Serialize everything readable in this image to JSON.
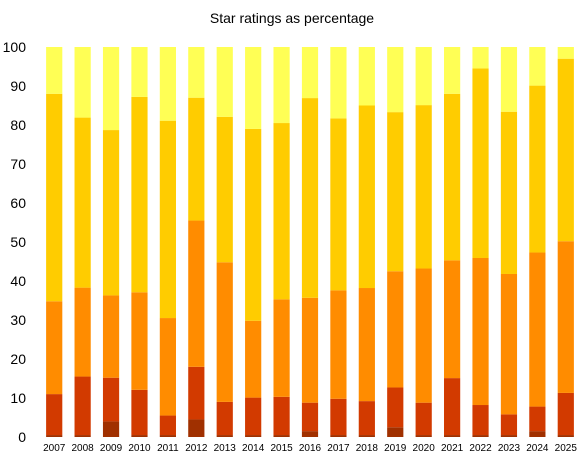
{
  "chart_data": {
    "type": "bar",
    "stacked": true,
    "title": "Star ratings as percentage",
    "xlabel": "",
    "ylabel": "",
    "ylim": [
      0,
      100
    ],
    "yticks": [
      0,
      10,
      20,
      30,
      40,
      50,
      60,
      70,
      80,
      90,
      100
    ],
    "grid": false,
    "legend": "none",
    "categories": [
      "2007",
      "2008",
      "2009",
      "2010",
      "2011",
      "2012",
      "2013",
      "2014",
      "2015",
      "2016",
      "2017",
      "2018",
      "2019",
      "2020",
      "2021",
      "2022",
      "2023",
      "2024",
      "2025"
    ],
    "series": [
      {
        "color": "#a03000",
        "values": [
          0.5,
          0.5,
          4.0,
          0.5,
          0.5,
          4.5,
          0.5,
          0.5,
          0.5,
          1.5,
          0.5,
          0.5,
          2.5,
          0.5,
          0.5,
          0.5,
          0.5,
          1.5,
          0.5
        ]
      },
      {
        "color": "#d23a00",
        "values": [
          10.5,
          15.0,
          11.2,
          11.6,
          5.0,
          13.5,
          8.5,
          9.6,
          9.8,
          7.3,
          9.3,
          8.7,
          10.2,
          8.3,
          14.6,
          7.7,
          5.3,
          6.3,
          10.8
        ]
      },
      {
        "color": "#ff8c00",
        "values": [
          23.8,
          22.8,
          21.1,
          25.0,
          25.0,
          37.5,
          35.8,
          19.7,
          25.0,
          26.9,
          27.8,
          29.0,
          29.8,
          34.4,
          30.2,
          37.7,
          36.0,
          39.5,
          38.9
        ]
      },
      {
        "color": "#ffcc00",
        "values": [
          53.2,
          43.6,
          42.4,
          50.1,
          50.6,
          31.5,
          37.3,
          49.2,
          45.2,
          51.2,
          44.1,
          46.8,
          40.8,
          41.9,
          42.7,
          48.6,
          41.6,
          42.8,
          46.8
        ]
      },
      {
        "color": "#ffff55",
        "values": [
          12.0,
          18.1,
          21.3,
          12.8,
          18.9,
          13.0,
          17.9,
          21.0,
          19.5,
          13.1,
          18.3,
          15.0,
          16.7,
          14.9,
          12.0,
          5.5,
          16.6,
          9.9,
          3.0
        ]
      }
    ]
  }
}
